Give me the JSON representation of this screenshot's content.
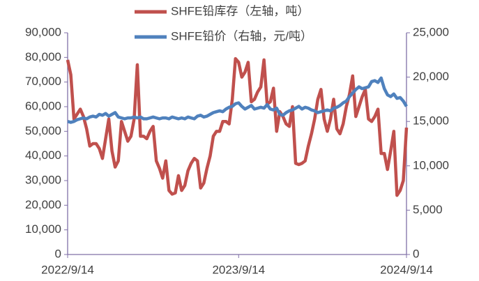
{
  "chart_data": {
    "type": "line",
    "categories": [
      "2022/9/14",
      null,
      null,
      null,
      null,
      null,
      null,
      null,
      null,
      null,
      null,
      null,
      null,
      null,
      null,
      null,
      null,
      null,
      null,
      null,
      null,
      null,
      null,
      null,
      null,
      null,
      null,
      null,
      null,
      null,
      null,
      null,
      null,
      null,
      null,
      null,
      null,
      null,
      null,
      null,
      null,
      null,
      null,
      null,
      null,
      null,
      null,
      null,
      null,
      null,
      null,
      null,
      null,
      null,
      "2023/9/14",
      null,
      null,
      null,
      null,
      null,
      null,
      null,
      null,
      null,
      null,
      null,
      null,
      null,
      null,
      null,
      null,
      null,
      null,
      null,
      null,
      null,
      null,
      null,
      null,
      null,
      null,
      null,
      null,
      null,
      null,
      null,
      null,
      null,
      null,
      null,
      null,
      null,
      null,
      null,
      null,
      null,
      null,
      null,
      null,
      null,
      null,
      null,
      null,
      null,
      null,
      null,
      null,
      "2024/9/14"
    ],
    "series": [
      {
        "name": "SHFE铅库存（左轴，吨）",
        "color": "#c0504d",
        "axis": "y",
        "values": [
          79000,
          73000,
          55000,
          57000,
          59000,
          56000,
          51000,
          44000,
          45000,
          45000,
          43000,
          39000,
          47000,
          55000,
          42000,
          35500,
          38000,
          54000,
          50000,
          46000,
          48000,
          55000,
          77000,
          48000,
          48000,
          47000,
          50000,
          52000,
          38000,
          35000,
          31000,
          38000,
          26000,
          24500,
          25000,
          32000,
          26000,
          28000,
          34000,
          37000,
          39000,
          38000,
          27000,
          29000,
          35000,
          40000,
          48000,
          50000,
          50000,
          54000,
          54000,
          53000,
          63000,
          79500,
          78000,
          72000,
          74000,
          78000,
          62000,
          63000,
          66000,
          68000,
          79000,
          61000,
          62000,
          67500,
          50000,
          58000,
          56000,
          53000,
          52000,
          60000,
          37000,
          36500,
          37000,
          38000,
          44000,
          49000,
          55000,
          63000,
          67000,
          55000,
          50000,
          55000,
          63000,
          51000,
          49000,
          53000,
          60000,
          65000,
          72500,
          56000,
          60000,
          64000,
          67000,
          55000,
          54000,
          56000,
          59000,
          41000,
          41000,
          34500,
          42000,
          50000,
          24000,
          26000,
          30000,
          51500
        ]
      },
      {
        "name": "SHFE铅价（右轴，元/吨）",
        "color": "#4f81bd",
        "axis": "y2",
        "values": [
          15000,
          14900,
          15000,
          15200,
          15300,
          15400,
          15300,
          15500,
          15600,
          15500,
          15800,
          15700,
          15900,
          15600,
          15800,
          16000,
          15500,
          15400,
          15300,
          15400,
          15400,
          15500,
          15400,
          15500,
          15300,
          15300,
          15400,
          15500,
          15400,
          15300,
          15400,
          15400,
          15300,
          15500,
          15400,
          15300,
          15400,
          15300,
          15500,
          15400,
          15300,
          15600,
          15700,
          15500,
          15600,
          15800,
          16000,
          16100,
          16200,
          16100,
          16400,
          16600,
          16700,
          17000,
          17100,
          16700,
          16400,
          16600,
          16800,
          16400,
          16500,
          16600,
          16500,
          16900,
          16400,
          16300,
          16500,
          15800,
          15700,
          16000,
          16200,
          16300,
          16500,
          16700,
          16400,
          16600,
          16500,
          16300,
          16200,
          16000,
          16100,
          16200,
          16300,
          16200,
          16500,
          16600,
          16800,
          17100,
          17300,
          17800,
          18200,
          18600,
          18900,
          18700,
          18800,
          18900,
          19500,
          19600,
          19400,
          19900,
          18700,
          18000,
          17800,
          18100,
          17600,
          17700,
          17300,
          16700
        ]
      }
    ],
    "ylim": [
      0,
      90000
    ],
    "yticks": [
      0,
      {
        "value": 10000,
        "label": "10,000"
      },
      {
        "value": 20000,
        "label": "20,000"
      },
      {
        "value": 30000,
        "label": "30,000"
      },
      {
        "value": 40000,
        "label": "40,000"
      },
      {
        "value": 50000,
        "label": "50,000"
      },
      {
        "value": 60000,
        "label": "60,000"
      },
      {
        "value": 70000,
        "label": "70,000"
      },
      {
        "value": 80000,
        "label": "80,000"
      },
      {
        "value": 90000,
        "label": "90,000"
      }
    ],
    "y2lim": [
      0,
      25000
    ],
    "y2ticks": [
      0,
      {
        "value": 5000,
        "label": "5,000"
      },
      {
        "value": 10000,
        "label": "10,000"
      },
      {
        "value": 15000,
        "label": "15,000"
      },
      {
        "value": 20000,
        "label": "20,000"
      },
      {
        "value": 25000,
        "label": "25,000"
      }
    ],
    "legend": "top"
  }
}
